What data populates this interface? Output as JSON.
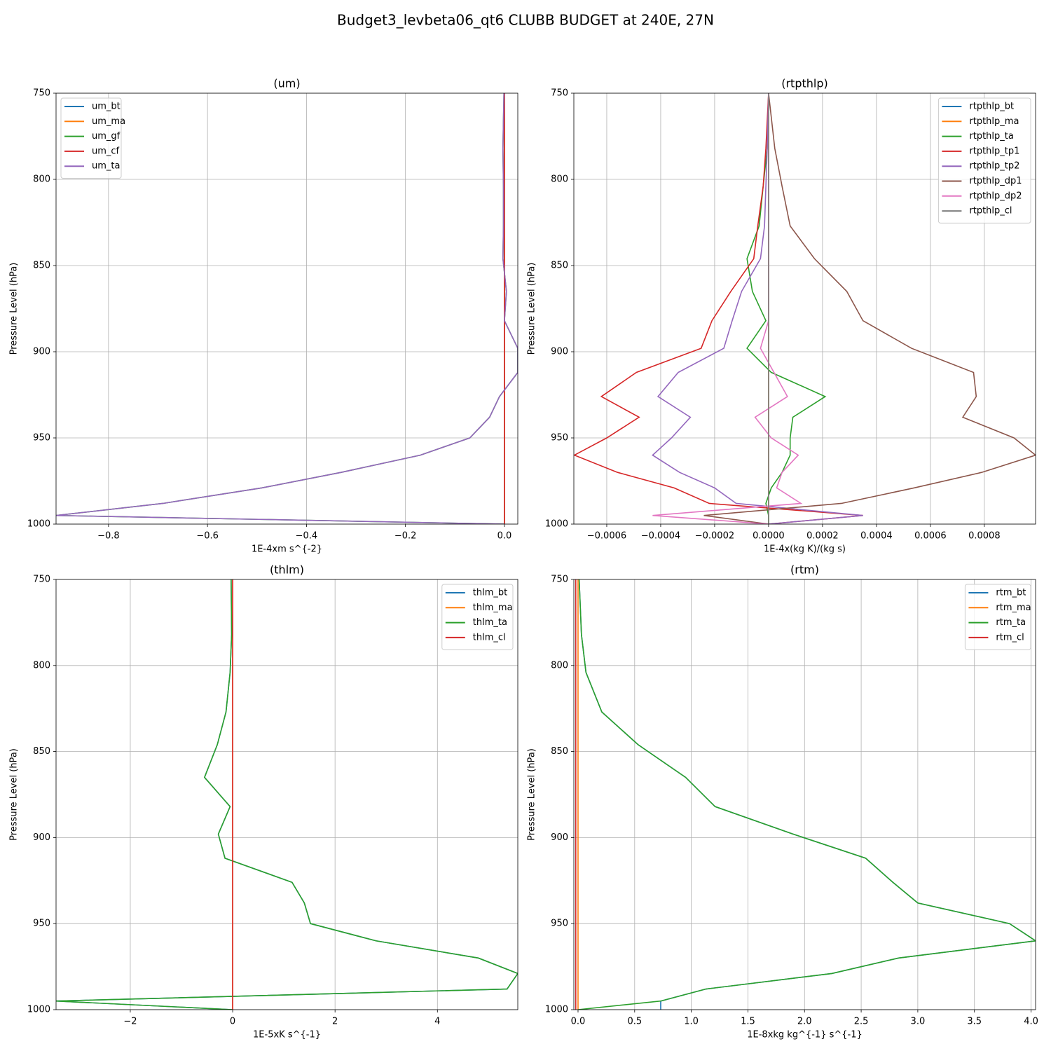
{
  "title": "Budget3_levbeta06_qt6 CLUBB BUDGET at 240E, 27N",
  "chart_data": [
    {
      "type": "line",
      "title": "(um)",
      "xlabel": "1E-4xm s^{-2}",
      "ylabel": "Pressure Level (hPa)",
      "y": [
        750,
        782,
        804,
        827,
        846,
        865,
        882,
        898,
        912,
        926,
        938,
        950,
        960,
        970,
        979,
        988,
        995,
        1000
      ],
      "series": [
        {
          "name": "um_bt",
          "color": "#1f77b4",
          "values": [
            0,
            0,
            0,
            0,
            0,
            0,
            0,
            0,
            0,
            0,
            0,
            0,
            0,
            0,
            0,
            0,
            0,
            0
          ]
        },
        {
          "name": "um_ma",
          "color": "#ff7f0e",
          "values": [
            0,
            0,
            0,
            0,
            0,
            0,
            0,
            0,
            0,
            0,
            0,
            0,
            0,
            0,
            0,
            0,
            0,
            0
          ]
        },
        {
          "name": "um_gf",
          "color": "#2ca02c",
          "values": [
            -0.001,
            -0.003,
            -0.002,
            -0.002,
            -0.003,
            0.004,
            0.0,
            0.027,
            0.027,
            -0.01,
            -0.03,
            -0.07,
            -0.17,
            -0.33,
            -0.49,
            -0.69,
            -0.906,
            0.0
          ]
        },
        {
          "name": "um_cf",
          "color": "#d62728",
          "values": [
            0,
            0,
            0,
            0,
            0,
            0,
            0,
            0,
            0,
            0,
            0,
            0,
            0,
            0,
            0,
            0,
            0,
            0
          ]
        },
        {
          "name": "um_ta",
          "color": "#9467bd",
          "values": [
            -0.001,
            -0.003,
            -0.002,
            -0.002,
            -0.003,
            0.004,
            0.0,
            0.027,
            0.027,
            -0.01,
            -0.03,
            -0.07,
            -0.17,
            -0.33,
            -0.49,
            -0.69,
            -0.906,
            0.0
          ]
        }
      ],
      "xlim": [
        -0.906,
        0.027
      ],
      "xticks": [
        {
          "value": -0.8,
          "label": "−0.8"
        },
        {
          "value": -0.6,
          "label": "−0.6"
        },
        {
          "value": -0.4,
          "label": "−0.4"
        },
        {
          "value": -0.2,
          "label": "−0.2"
        },
        {
          "value": 0,
          "label": "0.0"
        }
      ],
      "ylim": [
        1000,
        750
      ],
      "yticks": [
        750,
        800,
        850,
        900,
        950,
        1000
      ],
      "grid": true,
      "legend": "upper left"
    },
    {
      "type": "line",
      "title": "(rtpthlp)",
      "xlabel": "1E-4x(kg K)/(kg s)",
      "ylabel": "Pressure Level (hPa)",
      "y": [
        750,
        782,
        804,
        827,
        846,
        865,
        882,
        898,
        912,
        926,
        938,
        950,
        960,
        970,
        979,
        988,
        995,
        1000
      ],
      "series": [
        {
          "name": "rtpthlp_bt",
          "color": "#1f77b4",
          "values": [
            0,
            0,
            0,
            0,
            0,
            0,
            0,
            0,
            0,
            0,
            0,
            0,
            0,
            0,
            0,
            0,
            0,
            0
          ]
        },
        {
          "name": "rtpthlp_ma",
          "color": "#ff7f0e",
          "values": [
            0,
            0,
            0,
            0,
            0,
            0,
            0,
            0,
            0,
            0,
            0,
            0,
            0,
            0,
            0,
            0,
            0,
            0
          ]
        },
        {
          "name": "rtpthlp_ta",
          "color": "#2ca02c",
          "values": [
            0,
            -5e-06,
            -2e-05,
            -3.5e-05,
            -8e-05,
            -6e-05,
            -1e-05,
            -8e-05,
            1e-05,
            0.00021,
            9e-05,
            8e-05,
            8e-05,
            5e-05,
            1e-05,
            -1e-05,
            0,
            0
          ]
        },
        {
          "name": "rtpthlp_tp1",
          "color": "#d62728",
          "values": [
            0,
            -1e-05,
            -2e-05,
            -4e-05,
            -5.5e-05,
            -0.00014,
            -0.00021,
            -0.00025,
            -0.00049,
            -0.00062,
            -0.00048,
            -0.0006,
            -0.00072,
            -0.00056,
            -0.00035,
            -0.00022,
            0.00035,
            0
          ]
        },
        {
          "name": "rtpthlp_tp2",
          "color": "#9467bd",
          "values": [
            0,
            -5e-06,
            -1e-05,
            -1.5e-05,
            -3e-05,
            -0.0001,
            -0.000135,
            -0.000166,
            -0.000335,
            -0.00041,
            -0.00029,
            -0.00036,
            -0.00043,
            -0.00033,
            -0.0002,
            -0.00012,
            0.00035,
            0
          ]
        },
        {
          "name": "rtpthlp_dp1",
          "color": "#8c564b",
          "values": [
            0,
            2.3e-05,
            5e-05,
            8e-05,
            0.00017,
            0.00029,
            0.00035,
            0.00053,
            0.00076,
            0.00077,
            0.00072,
            0.00091,
            0.00099,
            0.00079,
            0.00054,
            0.00027,
            -0.00024,
            0
          ]
        },
        {
          "name": "rtpthlp_dp2",
          "color": "#e377c2",
          "values": [
            0,
            0,
            0,
            0,
            0,
            0,
            0,
            -3e-05,
            2e-05,
            7e-05,
            -5e-05,
            1e-05,
            0.00011,
            5e-05,
            3e-05,
            0.00012,
            -0.00043,
            0
          ]
        },
        {
          "name": "rtpthlp_cl",
          "color": "#7f7f7f",
          "values": [
            0,
            0,
            0,
            0,
            0,
            0,
            0,
            0,
            0,
            0,
            0,
            0,
            0,
            0,
            0,
            0,
            0,
            0
          ]
        }
      ],
      "xlim": [
        -0.000722,
        0.00099
      ],
      "xticks": [
        {
          "value": -0.0006,
          "label": "−0.0006"
        },
        {
          "value": -0.0004,
          "label": "−0.0004"
        },
        {
          "value": -0.0002,
          "label": "−0.0002"
        },
        {
          "value": 0,
          "label": "0.0000"
        },
        {
          "value": 0.0002,
          "label": "0.0002"
        },
        {
          "value": 0.0004,
          "label": "0.0004"
        },
        {
          "value": 0.0006,
          "label": "0.0006"
        },
        {
          "value": 0.0008,
          "label": "0.0008"
        }
      ],
      "ylim": [
        1000,
        750
      ],
      "yticks": [
        750,
        800,
        850,
        900,
        950,
        1000
      ],
      "grid": true,
      "legend": "upper right"
    },
    {
      "type": "line",
      "title": "(thlm)",
      "xlabel": "1E-5xK s^{-1}",
      "ylabel": "Pressure Level (hPa)",
      "y": [
        750,
        782,
        804,
        827,
        846,
        865,
        882,
        898,
        912,
        926,
        938,
        950,
        960,
        970,
        979,
        988,
        995,
        1000
      ],
      "series": [
        {
          "name": "thlm_bt",
          "color": "#1f77b4",
          "values": [
            -0.03,
            -0.02,
            -0.05,
            -0.13,
            -0.3,
            -0.55,
            -0.05,
            -0.28,
            -0.15,
            1.16,
            1.4,
            1.52,
            2.8,
            4.8,
            5.57,
            5.36,
            -3.45,
            0
          ]
        },
        {
          "name": "thlm_ma",
          "color": "#ff7f0e",
          "values": [
            0,
            0,
            0,
            0,
            0,
            0,
            0,
            0,
            0,
            0,
            0,
            0,
            0,
            0,
            0,
            0,
            0,
            0
          ]
        },
        {
          "name": "thlm_ta",
          "color": "#2ca02c",
          "values": [
            -0.03,
            -0.02,
            -0.05,
            -0.13,
            -0.3,
            -0.55,
            -0.05,
            -0.28,
            -0.15,
            1.16,
            1.4,
            1.52,
            2.8,
            4.8,
            5.57,
            5.36,
            -3.45,
            0
          ]
        },
        {
          "name": "thlm_cl",
          "color": "#d62728",
          "values": [
            0,
            0,
            0,
            0,
            0,
            0,
            0,
            0,
            0,
            0,
            0,
            0,
            0,
            0,
            0,
            0,
            0,
            0
          ]
        }
      ],
      "xlim": [
        -3.45,
        5.57
      ],
      "xticks": [
        {
          "value": -2,
          "label": "−2"
        },
        0,
        2,
        4
      ],
      "ylim": [
        1000,
        750
      ],
      "yticks": [
        750,
        800,
        850,
        900,
        950,
        1000
      ],
      "grid": true,
      "legend": "upper right"
    },
    {
      "type": "line",
      "title": "(rtm)",
      "xlabel": "1E-8xkg kg^{-1} s^{-1}",
      "ylabel": "Pressure Level (hPa)",
      "y": [
        750,
        782,
        804,
        827,
        846,
        865,
        882,
        898,
        912,
        926,
        938,
        950,
        960,
        970,
        979,
        988,
        995,
        1000
      ],
      "series": [
        {
          "name": "rtm_bt",
          "color": "#1f77b4",
          "values": [
            0.01,
            0.03,
            0.07,
            0.21,
            0.53,
            0.95,
            1.21,
            1.9,
            2.54,
            2.78,
            3.0,
            3.81,
            4.04,
            2.83,
            2.24,
            1.13,
            0.73,
            0.73
          ]
        },
        {
          "name": "rtm_ma",
          "color": "#ff7f0e",
          "values": [
            0,
            0,
            0,
            0,
            0,
            0,
            0,
            0,
            0,
            0,
            0,
            0,
            0,
            0,
            0,
            0,
            0,
            0
          ]
        },
        {
          "name": "rtm_ta",
          "color": "#2ca02c",
          "values": [
            0.01,
            0.03,
            0.07,
            0.21,
            0.53,
            0.95,
            1.21,
            1.9,
            2.54,
            2.78,
            3.0,
            3.81,
            4.04,
            2.83,
            2.24,
            1.13,
            0.73,
            0
          ]
        },
        {
          "name": "rtm_cl",
          "color": "#d62728",
          "values": [
            -0.02,
            -0.02,
            -0.02,
            -0.02,
            -0.02,
            -0.02,
            -0.02,
            -0.02,
            -0.02,
            -0.02,
            -0.02,
            -0.02,
            -0.02,
            -0.02,
            -0.02,
            -0.02,
            -0.02,
            -0.02
          ]
        }
      ],
      "xlim": [
        -0.037,
        4.04
      ],
      "xticks": [
        {
          "value": 0,
          "label": "0.0"
        },
        {
          "value": 0.5,
          "label": "0.5"
        },
        {
          "value": 1,
          "label": "1.0"
        },
        {
          "value": 1.5,
          "label": "1.5"
        },
        {
          "value": 2,
          "label": "2.0"
        },
        {
          "value": 2.5,
          "label": "2.5"
        },
        {
          "value": 3,
          "label": "3.0"
        },
        {
          "value": 3.5,
          "label": "3.5"
        },
        {
          "value": 4,
          "label": "4.0"
        }
      ],
      "ylim": [
        1000,
        750
      ],
      "yticks": [
        750,
        800,
        850,
        900,
        950,
        1000
      ],
      "grid": true,
      "legend": "upper right"
    }
  ]
}
